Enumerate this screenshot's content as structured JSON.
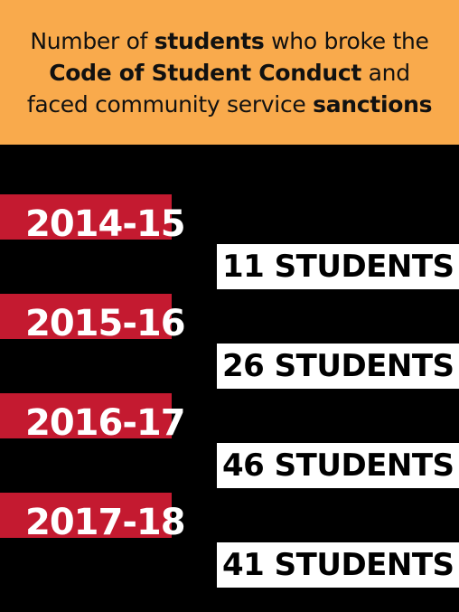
{
  "title": {
    "lines": [
      [
        {
          "text": "Number of ",
          "bold": false
        },
        {
          "text": "students",
          "bold": true
        },
        {
          "text": " who broke the",
          "bold": false
        }
      ],
      [
        {
          "text": "Code of Student Conduct",
          "bold": true
        },
        {
          "text": " and",
          "bold": false
        }
      ],
      [
        {
          "text": "faced community service ",
          "bold": false
        },
        {
          "text": "sanctions",
          "bold": true
        }
      ]
    ]
  },
  "rows": [
    {
      "year": "2014-15",
      "count": "11 STUDENTS"
    },
    {
      "year": "2015-16",
      "count": "26 STUDENTS"
    },
    {
      "year": "2016-17",
      "count": "46 STUDENTS"
    },
    {
      "year": "2017-18",
      "count": "41 STUDENTS"
    }
  ]
}
